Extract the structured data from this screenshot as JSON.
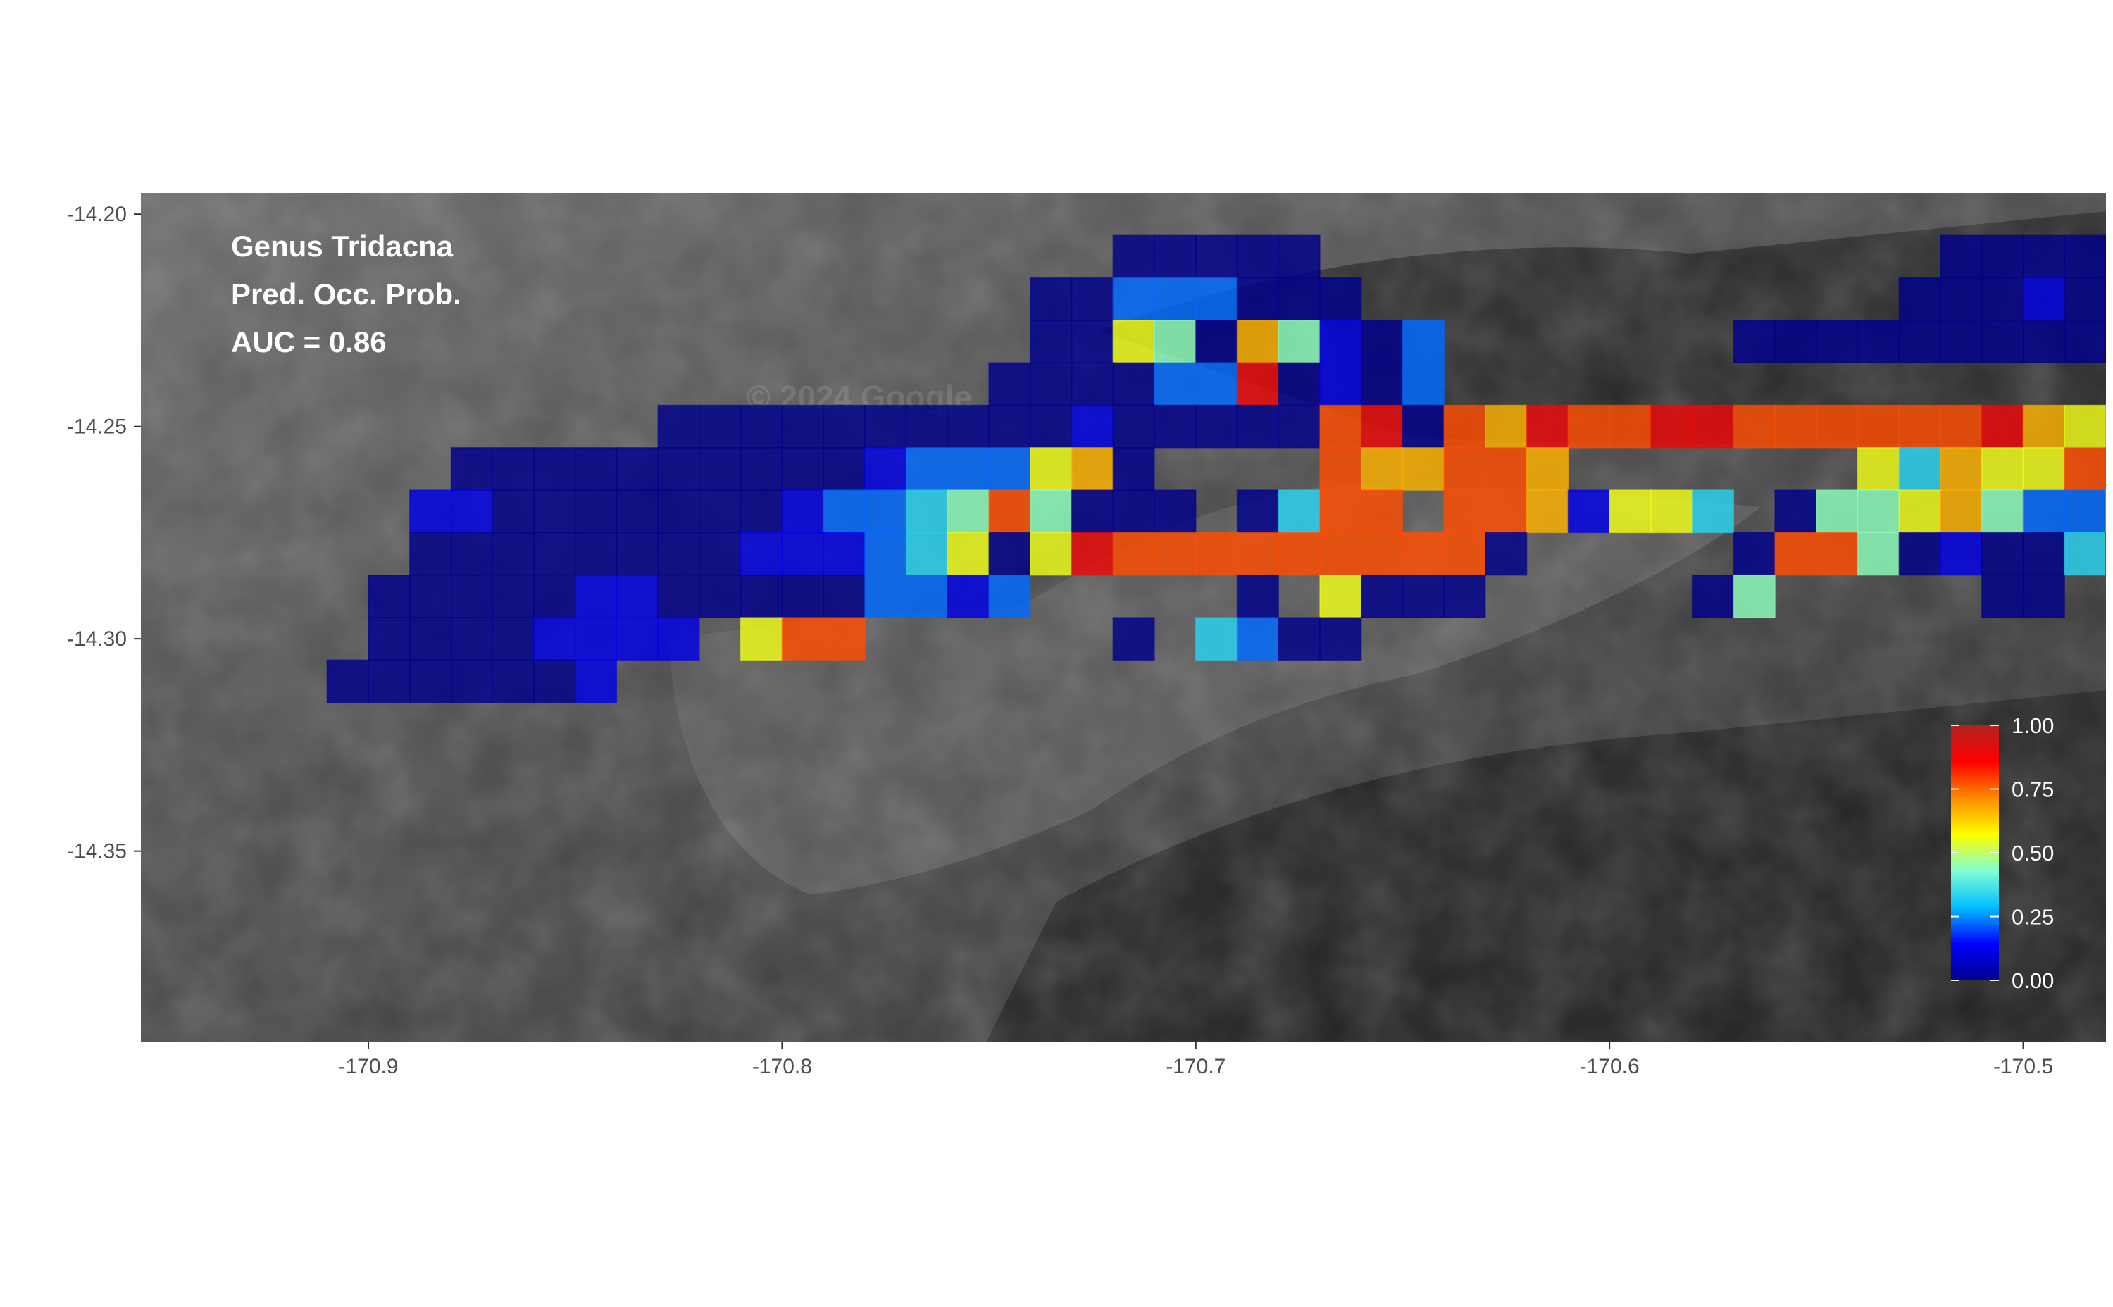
{
  "annotation": {
    "line1": "Genus Tridacna",
    "line2": "Pred. Occ. Prob.",
    "line3": "AUC = 0.86"
  },
  "map": {
    "basemap": "grayscale satellite imagery",
    "watermark_text": "© 2024 Google",
    "xlim": [
      -170.955,
      -170.48
    ],
    "ylim": [
      -14.395,
      -14.195
    ]
  },
  "axes": {
    "x_ticks": [
      {
        "value": -170.9,
        "label": "-170.9"
      },
      {
        "value": -170.8,
        "label": "-170.8"
      },
      {
        "value": -170.7,
        "label": "-170.7"
      },
      {
        "value": -170.6,
        "label": "-170.6"
      },
      {
        "value": -170.5,
        "label": "-170.5"
      }
    ],
    "y_ticks": [
      {
        "value": -14.2,
        "label": "-14.20"
      },
      {
        "value": -14.25,
        "label": "-14.25"
      },
      {
        "value": -14.3,
        "label": "-14.30"
      },
      {
        "value": -14.35,
        "label": "-14.35"
      }
    ]
  },
  "legend": {
    "range": [
      0,
      1
    ],
    "colors": [
      "#00008b",
      "#0000ff",
      "#00bfff",
      "#7fffd4",
      "#ffff00",
      "#ff8c00",
      "#ff0000",
      "#b22222"
    ],
    "ticks": [
      {
        "value": 1.0,
        "label": "1.00"
      },
      {
        "value": 0.75,
        "label": "0.75"
      },
      {
        "value": 0.5,
        "label": "0.50"
      },
      {
        "value": 0.25,
        "label": "0.25"
      },
      {
        "value": 0.0,
        "label": "0.00"
      }
    ]
  },
  "grid": {
    "cell_size_deg": 0.01,
    "first_column_center_lon": -170.935,
    "first_row_center_lat": -14.2,
    "opacity": 0.82,
    "rows": [
      "..................................................00...........",
      "......................00000...............00000000...........",
      "....................00222000.............0001001010...........",
      "....................0054064102.......00000000001000...........",
      "...................00002280102...................01006300000...",
      "...........00000000001000007807687788777777865700000............",
      "......00000000001222560....766776.......53655720000............",
      ".....1100000001223474000.0377.7761553.04456422661000000.....",
      ".....000000001112350587777777770.....0774010030.....",
      "....0000011000002212.....0.5000.....04.....00.....",
      "....00001111.577......0.3200.........",
      "...0000001..........."
    ]
  }
}
